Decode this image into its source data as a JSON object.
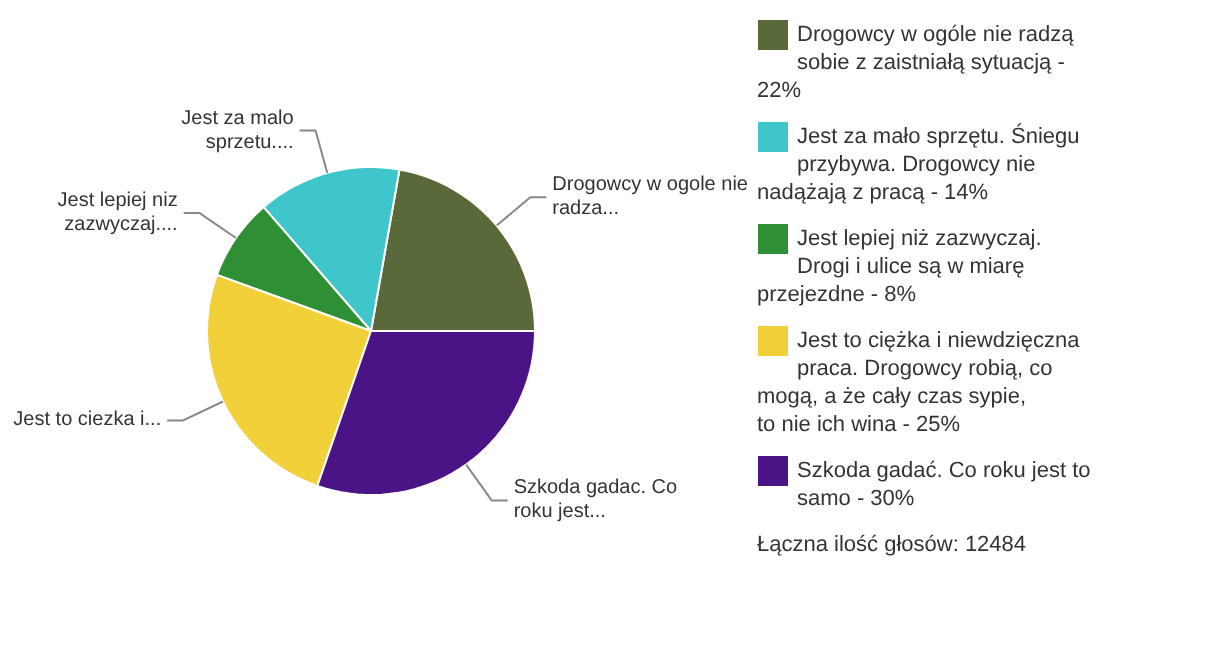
{
  "chart_data": {
    "type": "pie",
    "categories": [
      "Drogowcy w ogóle nie radzą sobie z zaistniałą sytuacją - 22%",
      "Jest za mało sprzętu. Śniegu przybywa. Drogowcy nie nadążają z pracą - 14%",
      "Jest lepiej niż zazwyczaj. Drogi i ulice są w miarę przejezdne - 8%",
      "Jest to ciężka i niewdzięczna praca. Drogowcy robią, co mogą, a że cały czas sypie, to nie ich wina - 25%",
      "Szkoda gadać. Co roku jest to samo - 30%"
    ],
    "values": [
      22,
      14,
      8,
      25,
      30
    ],
    "colors": [
      "#59693a",
      "#3ec6cb",
      "#2f8f35",
      "#f2d03a",
      "#4a1486"
    ],
    "legend": "right",
    "annotations": [
      "Drogowcy w ogole nie radza...",
      "Jest za malo sprzetu....",
      "Jest lepiej niz zazwyczaj....",
      "Jest to ciezka i...",
      "Szkoda gadac. Co roku jest...",
      "Łączna ilość głosów: 12484"
    ]
  }
}
